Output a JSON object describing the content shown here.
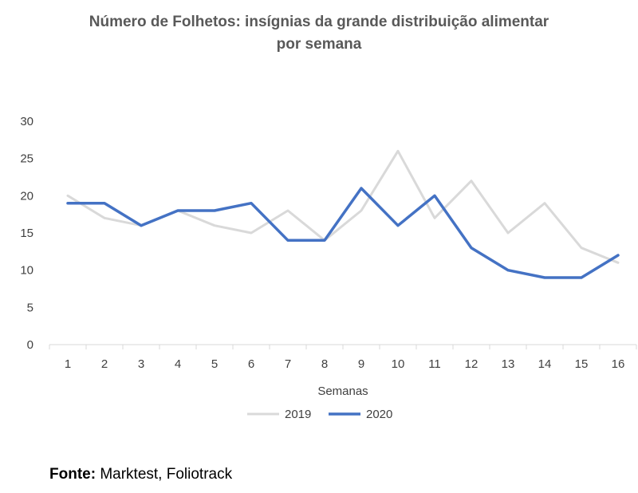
{
  "chart_data": {
    "type": "line",
    "title": "Número de Folhetos: insígnias da grande distribuição alimentar",
    "subtitle": "por semana",
    "xlabel": "Semanas",
    "ylabel": "",
    "categories": [
      "1",
      "2",
      "3",
      "4",
      "5",
      "6",
      "7",
      "8",
      "9",
      "10",
      "11",
      "12",
      "13",
      "14",
      "15",
      "16"
    ],
    "ylim": [
      0,
      30
    ],
    "yticks": [
      0,
      5,
      10,
      15,
      20,
      25,
      30
    ],
    "grid": false,
    "legend": "bottom",
    "series": [
      {
        "name": "2019",
        "color": "#d9d9d9",
        "values": [
          20,
          17,
          16,
          18,
          16,
          15,
          18,
          14,
          18,
          26,
          17,
          22,
          15,
          19,
          13,
          11
        ]
      },
      {
        "name": "2020",
        "color": "#4472c4",
        "values": [
          19,
          19,
          16,
          18,
          18,
          19,
          14,
          14,
          21,
          16,
          20,
          13,
          10,
          9,
          9,
          12
        ]
      }
    ]
  },
  "source": {
    "label": "Fonte:",
    "text": "Marktest, Foliotrack"
  }
}
